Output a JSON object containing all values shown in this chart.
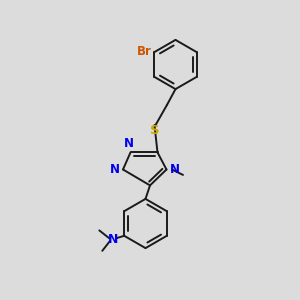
{
  "background_color": "#dcdcdc",
  "bond_color": "#1a1a1a",
  "N_color": "#0000ee",
  "Br_color": "#cc5500",
  "S_color": "#ccaa00",
  "lw": 1.4,
  "figsize": [
    3.0,
    3.0
  ],
  "dpi": 100,
  "xlim": [
    0,
    10
  ],
  "ylim": [
    0,
    10
  ]
}
